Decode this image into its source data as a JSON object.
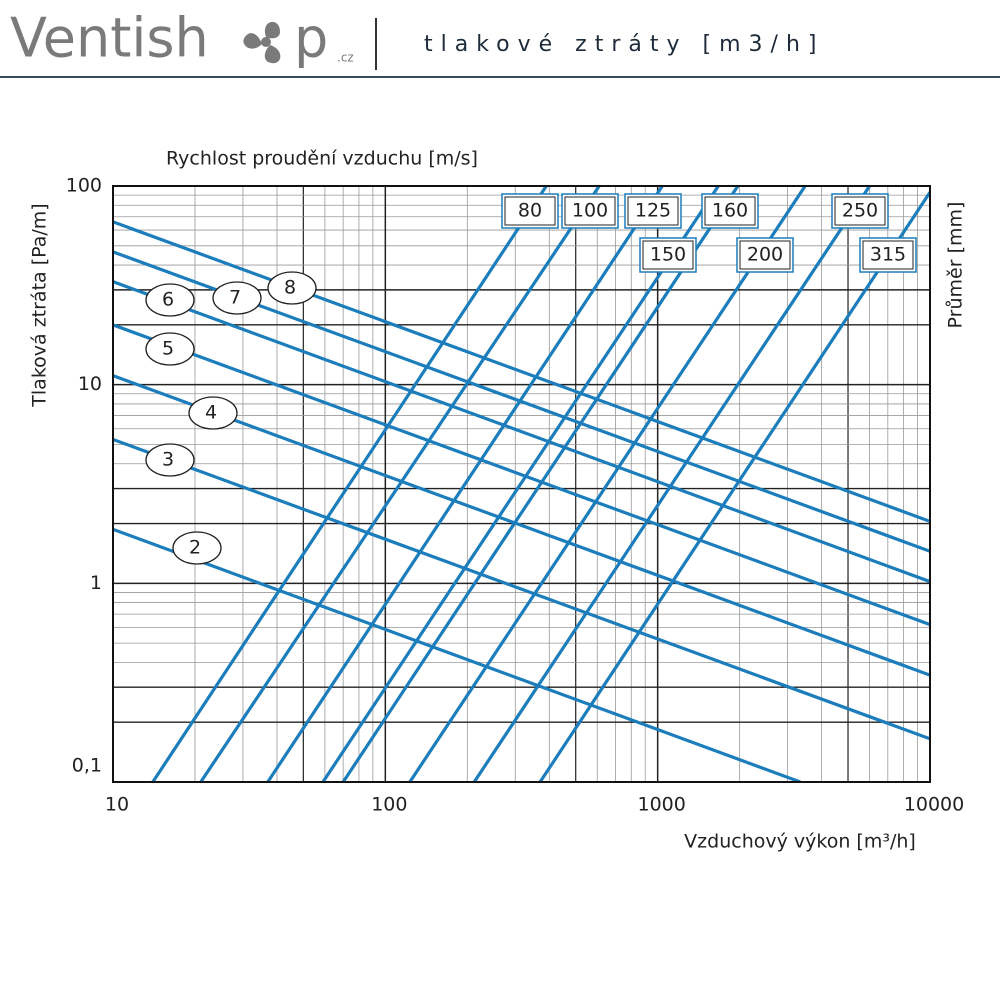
{
  "header": {
    "logo_start": "Ventish",
    "logo_end": "p",
    "logo_suffix": ".cz",
    "title": "tlakové ztráty [m3/h]"
  },
  "chart_data": {
    "type": "line",
    "top_label": "Rychlost proudění vzduchu [m/s]",
    "y_label": "Tlaková ztráta [Pa/m]",
    "y2_label": "Průměr [mm]",
    "x_label": "Vzduchový výkon [m³/h]",
    "log_x": true,
    "log_y": true,
    "grid": true,
    "xlim": [
      10,
      10000
    ],
    "ylim": [
      0.1,
      100
    ],
    "xticks": [
      10,
      100,
      1000,
      10000
    ],
    "yticks": [
      {
        "value": 0.1,
        "label": "0,1"
      },
      1,
      10,
      100
    ],
    "series": [
      {
        "name": "2",
        "label_style": "ellipse",
        "color": "#1b7dbb",
        "x": [
          10,
          3340
        ],
        "values": [
          1.87,
          0.1
        ]
      },
      {
        "name": "3",
        "label_style": "ellipse",
        "color": "#1b7dbb",
        "x": [
          10,
          10000
        ],
        "values": [
          5.3,
          0.165
        ]
      },
      {
        "name": "4",
        "label_style": "ellipse",
        "color": "#1b7dbb",
        "x": [
          10,
          10000
        ],
        "values": [
          11.1,
          0.345
        ]
      },
      {
        "name": "5",
        "label_style": "ellipse",
        "color": "#1b7dbb",
        "x": [
          10,
          10000
        ],
        "values": [
          20,
          0.62
        ]
      },
      {
        "name": "6",
        "label_style": "ellipse",
        "color": "#1b7dbb",
        "x": [
          10,
          10000
        ],
        "values": [
          33,
          1.02
        ]
      },
      {
        "name": "7",
        "label_style": "ellipse",
        "color": "#1b7dbb",
        "x": [
          10,
          10000
        ],
        "values": [
          46.6,
          1.45
        ]
      },
      {
        "name": "8",
        "label_style": "ellipse",
        "color": "#1b7dbb",
        "x": [
          10,
          10000
        ],
        "values": [
          66,
          2.05
        ]
      },
      {
        "name": "80",
        "label_style": "box",
        "color": "#1b7dbb",
        "x": [
          14,
          390
        ],
        "values": [
          0.1,
          100
        ]
      },
      {
        "name": "100",
        "label_style": "box",
        "color": "#1b7dbb",
        "x": [
          21,
          610
        ],
        "values": [
          0.1,
          100
        ]
      },
      {
        "name": "125",
        "label_style": "box",
        "color": "#1b7dbb",
        "x": [
          37,
          1040
        ],
        "values": [
          0.1,
          100
        ]
      },
      {
        "name": "150",
        "label_style": "box",
        "color": "#1b7dbb",
        "x": [
          59,
          1670
        ],
        "values": [
          0.1,
          100
        ]
      },
      {
        "name": "160",
        "label_style": "box",
        "color": "#1b7dbb",
        "x": [
          70,
          1970
        ],
        "values": [
          0.1,
          100
        ]
      },
      {
        "name": "200",
        "label_style": "box",
        "color": "#1b7dbb",
        "x": [
          123,
          3480
        ],
        "values": [
          0.1,
          100
        ]
      },
      {
        "name": "250",
        "label_style": "box",
        "color": "#1b7dbb",
        "x": [
          212,
          6000
        ],
        "values": [
          0.1,
          100
        ]
      },
      {
        "name": "315",
        "label_style": "box",
        "color": "#1b7dbb",
        "x": [
          370,
          10000
        ],
        "values": [
          0.1,
          93
        ]
      }
    ]
  }
}
